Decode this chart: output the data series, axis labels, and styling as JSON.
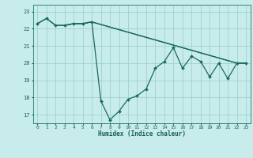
{
  "xlabel": "Humidex (Indice chaleur)",
  "ylabel": "",
  "xlim": [
    -0.5,
    23.5
  ],
  "ylim": [
    16.5,
    23.4
  ],
  "yticks": [
    17,
    18,
    19,
    20,
    21,
    22,
    23
  ],
  "xticks": [
    0,
    1,
    2,
    3,
    4,
    5,
    6,
    7,
    8,
    9,
    10,
    11,
    12,
    13,
    14,
    15,
    16,
    17,
    18,
    19,
    20,
    21,
    22,
    23
  ],
  "background_color": "#c8ecec",
  "grid_color": "#a0d0d0",
  "line_color": "#1a6b5a",
  "line1_x": [
    0,
    1,
    2,
    3,
    4,
    5,
    6,
    7,
    8,
    9,
    10,
    11,
    12,
    13,
    14,
    15,
    16,
    17,
    18,
    19,
    20,
    21,
    22,
    23
  ],
  "line1_y": [
    22.3,
    22.6,
    22.2,
    22.2,
    22.3,
    22.3,
    22.4,
    17.8,
    16.7,
    17.2,
    17.9,
    18.1,
    18.5,
    19.7,
    20.1,
    20.9,
    19.7,
    20.4,
    20.1,
    19.2,
    20.0,
    19.1,
    20.0,
    20.0
  ],
  "line2_x": [
    0,
    1,
    2,
    3,
    4,
    5,
    6,
    22,
    23
  ],
  "line2_y": [
    22.3,
    22.6,
    22.2,
    22.2,
    22.3,
    22.3,
    22.4,
    20.0,
    20.0
  ],
  "line3_x": [
    3,
    4,
    5,
    6,
    22,
    23
  ],
  "line3_y": [
    22.2,
    22.3,
    22.3,
    22.4,
    20.0,
    20.0
  ]
}
